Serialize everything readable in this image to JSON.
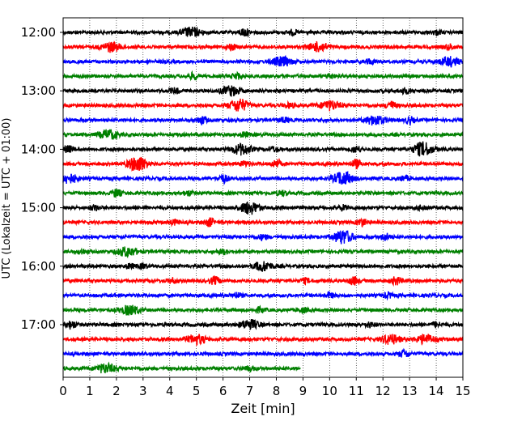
{
  "chart_data": {
    "type": "line",
    "xlabel": "Zeit  [min]",
    "ylabel": "UTC (Lokalzeit = UTC + 01:00)",
    "xlim": [
      0,
      15
    ],
    "x_ticks": [
      "0",
      "1",
      "2",
      "3",
      "4",
      "5",
      "6",
      "7",
      "8",
      "9",
      "10",
      "11",
      "12",
      "13",
      "14",
      "15"
    ],
    "y_ticks": [
      "12:00",
      "13:00",
      "14:00",
      "15:00",
      "16:00",
      "17:00"
    ],
    "grid": "vertical dotted at each minute",
    "trace_interval_minutes": 15,
    "color_cycle": [
      "#000000",
      "#ff0000",
      "#0000ff",
      "#008000"
    ],
    "traces": [
      {
        "start": "12:00",
        "bursts": [
          [
            4.8,
            0.6
          ],
          [
            6.8,
            0.5
          ],
          [
            8.6,
            0.3
          ],
          [
            14.0,
            0.25
          ]
        ]
      },
      {
        "start": "12:15",
        "bursts": [
          [
            1.8,
            0.6
          ],
          [
            6.3,
            0.4
          ],
          [
            9.6,
            0.6
          ],
          [
            14.5,
            0.3
          ]
        ]
      },
      {
        "start": "12:30",
        "bursts": [
          [
            8.2,
            0.6
          ],
          [
            14.5,
            0.6
          ],
          [
            11.5,
            0.3
          ]
        ]
      },
      {
        "start": "12:45",
        "bursts": [
          [
            4.9,
            0.4
          ],
          [
            6.5,
            0.4
          ],
          [
            10.0,
            0.3
          ]
        ]
      },
      {
        "start": "13:00",
        "bursts": [
          [
            6.3,
            0.6
          ],
          [
            4.2,
            0.3
          ],
          [
            12.8,
            0.3
          ]
        ]
      },
      {
        "start": "13:15",
        "bursts": [
          [
            6.6,
            0.8
          ],
          [
            10.0,
            0.6
          ],
          [
            12.3,
            0.5
          ],
          [
            8.5,
            0.3
          ]
        ]
      },
      {
        "start": "13:30",
        "bursts": [
          [
            5.2,
            0.5
          ],
          [
            11.7,
            0.6
          ],
          [
            13.0,
            0.4
          ],
          [
            8.3,
            0.3
          ]
        ]
      },
      {
        "start": "13:45",
        "bursts": [
          [
            1.7,
            0.6
          ],
          [
            6.8,
            0.3
          ]
        ]
      },
      {
        "start": "14:00",
        "bursts": [
          [
            0.2,
            0.4
          ],
          [
            6.7,
            0.7
          ],
          [
            13.5,
            0.9
          ],
          [
            11.0,
            0.4
          ],
          [
            7.9,
            0.3
          ]
        ]
      },
      {
        "start": "14:15",
        "bursts": [
          [
            2.8,
            1.0
          ],
          [
            8.0,
            0.5
          ],
          [
            11.0,
            0.5
          ],
          [
            6.8,
            0.3
          ]
        ]
      },
      {
        "start": "14:30",
        "bursts": [
          [
            0.2,
            0.6
          ],
          [
            6.0,
            0.5
          ],
          [
            10.5,
            0.9
          ],
          [
            12.8,
            0.3
          ]
        ]
      },
      {
        "start": "14:45",
        "bursts": [
          [
            2.0,
            0.5
          ],
          [
            4.7,
            0.3
          ],
          [
            8.2,
            0.3
          ]
        ]
      },
      {
        "start": "15:00",
        "bursts": [
          [
            7.0,
            0.8
          ],
          [
            1.2,
            0.3
          ],
          [
            10.5,
            0.3
          ],
          [
            13.5,
            0.3
          ]
        ]
      },
      {
        "start": "15:15",
        "bursts": [
          [
            5.5,
            0.5
          ],
          [
            11.2,
            0.5
          ],
          [
            4.2,
            0.3
          ]
        ]
      },
      {
        "start": "15:30",
        "bursts": [
          [
            10.5,
            0.9
          ],
          [
            12.1,
            0.4
          ],
          [
            7.5,
            0.3
          ]
        ]
      },
      {
        "start": "15:45",
        "bursts": [
          [
            2.4,
            0.6
          ],
          [
            0.7,
            0.3
          ],
          [
            6.0,
            0.3
          ]
        ]
      },
      {
        "start": "16:00",
        "bursts": [
          [
            7.5,
            0.6
          ],
          [
            2.5,
            0.3
          ],
          [
            3.0,
            0.3
          ]
        ]
      },
      {
        "start": "16:15",
        "bursts": [
          [
            5.7,
            0.5
          ],
          [
            10.9,
            0.5
          ],
          [
            12.5,
            0.5
          ],
          [
            4.1,
            0.3
          ],
          [
            9.1,
            0.3
          ]
        ]
      },
      {
        "start": "16:30",
        "bursts": [
          [
            6.5,
            0.3
          ],
          [
            10.0,
            0.3
          ],
          [
            12.2,
            0.3
          ]
        ]
      },
      {
        "start": "16:45",
        "bursts": [
          [
            2.5,
            0.6
          ],
          [
            7.4,
            0.3
          ],
          [
            9.0,
            0.3
          ]
        ]
      },
      {
        "start": "17:00",
        "bursts": [
          [
            7.0,
            0.6
          ],
          [
            0.3,
            0.5
          ],
          [
            11.5,
            0.3
          ],
          [
            14.0,
            0.3
          ]
        ]
      },
      {
        "start": "17:15",
        "bursts": [
          [
            5.0,
            0.6
          ],
          [
            12.3,
            0.6
          ],
          [
            13.6,
            0.6
          ]
        ]
      },
      {
        "start": "17:30",
        "bursts": [
          [
            12.8,
            0.5
          ]
        ]
      },
      {
        "start": "17:45",
        "bursts": [
          [
            1.6,
            0.6
          ],
          [
            7.0,
            0.3
          ]
        ],
        "end": 8.9
      }
    ]
  }
}
